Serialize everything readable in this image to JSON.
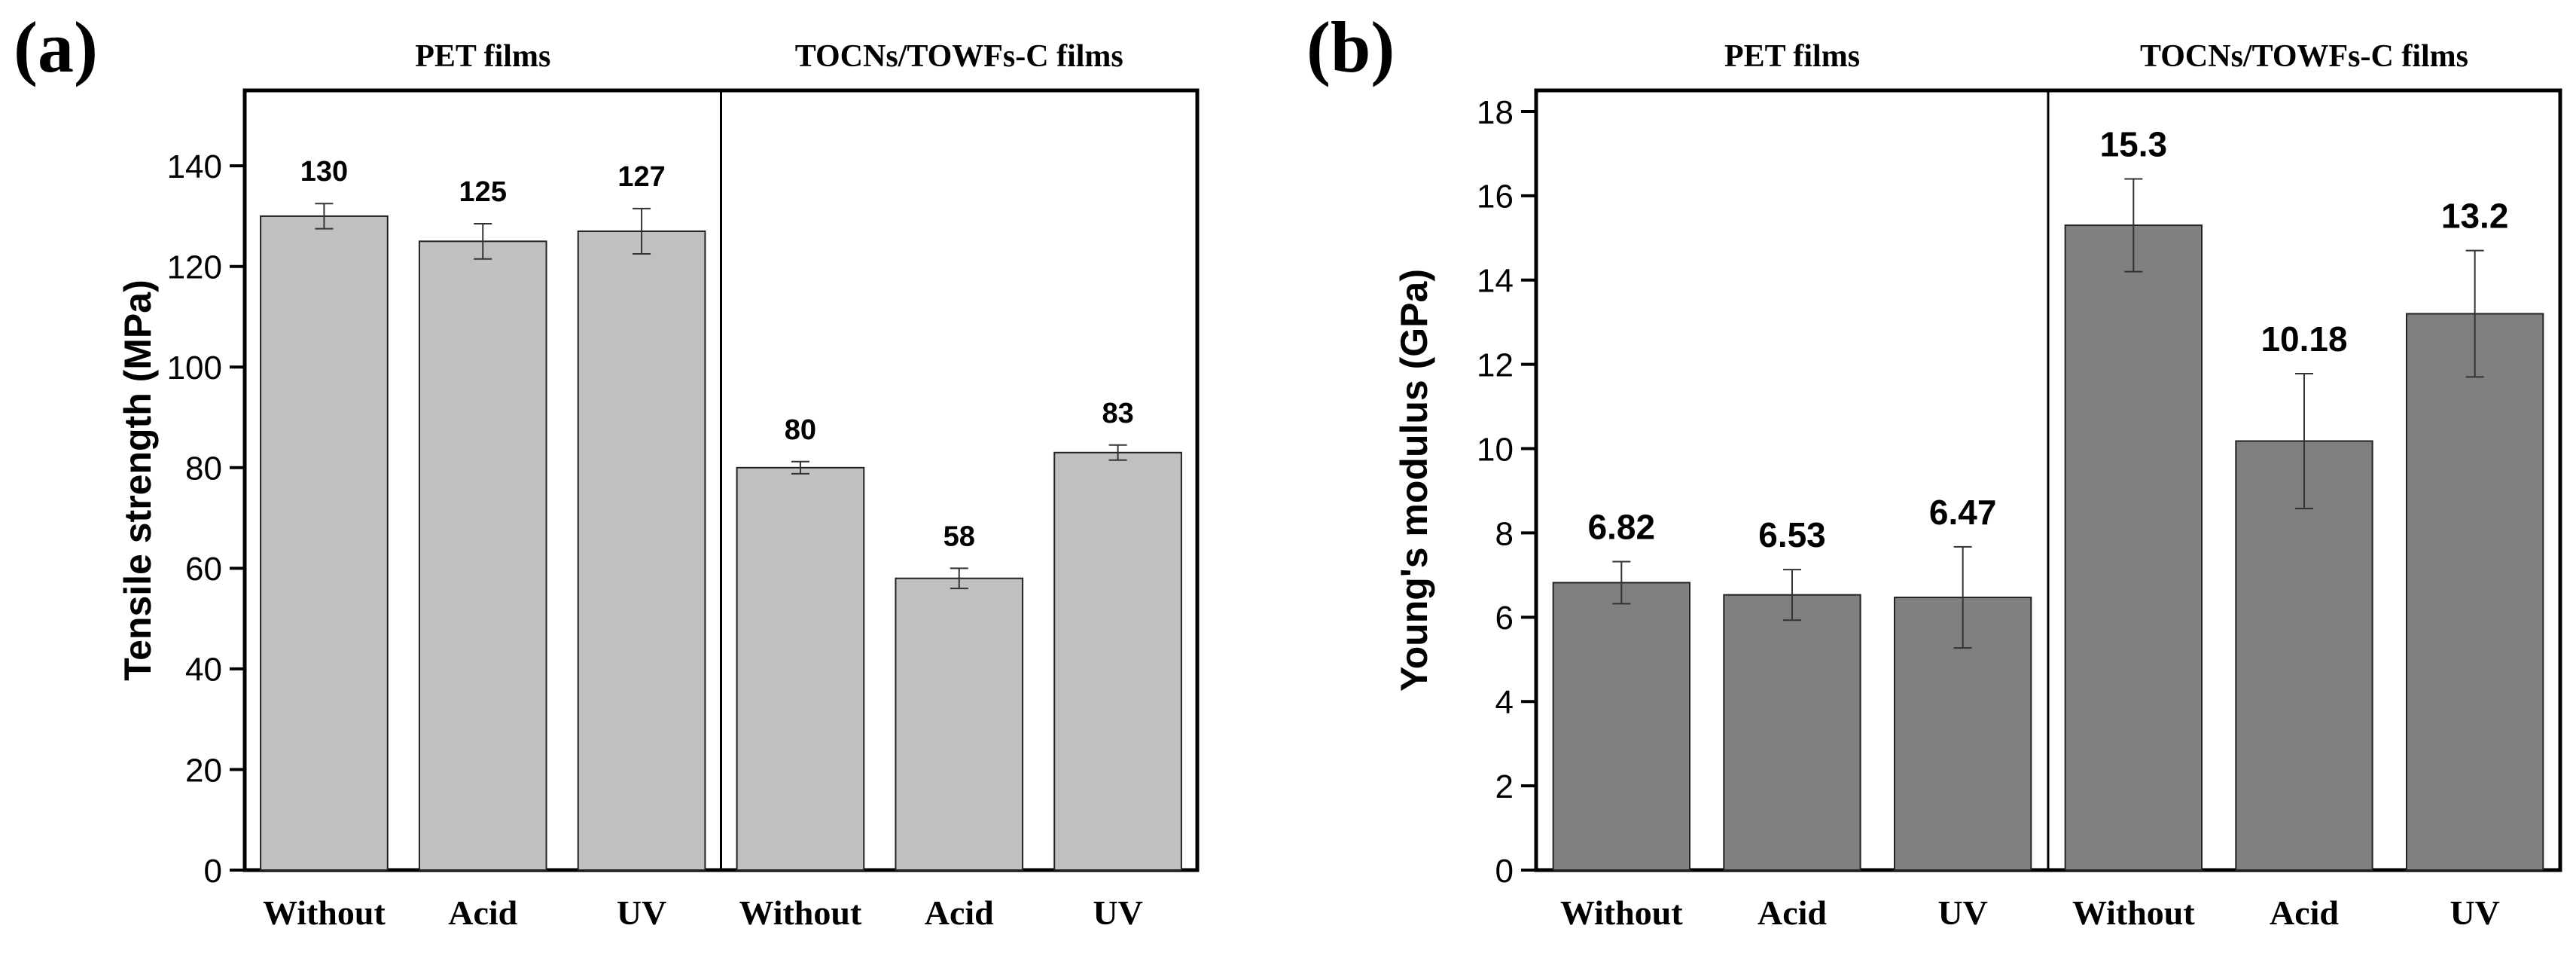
{
  "colors": {
    "axis": "#000000",
    "bar_a": "#c0c0c0",
    "bar_b": "#808080",
    "bar_edge": "#222222",
    "errorbar": "#333333",
    "background": "#ffffff"
  },
  "chart_data": [
    {
      "type": "bar",
      "panel_label": "(a)",
      "title": "",
      "xlabel": "",
      "ylabel": "Tensile strength (MPa)",
      "ylim": [
        0,
        155
      ],
      "yticks": [
        0,
        20,
        40,
        60,
        80,
        100,
        120,
        140
      ],
      "grid": false,
      "groups": [
        {
          "label": "PET films",
          "categories": [
            "Without",
            "Acid",
            "UV"
          ]
        },
        {
          "label": "TOCNs/TOWFs-C films",
          "categories": [
            "Without",
            "Acid",
            "UV"
          ]
        }
      ],
      "categories": [
        "Without",
        "Acid",
        "UV",
        "Without",
        "Acid",
        "UV"
      ],
      "values": [
        130,
        125,
        127,
        80,
        58,
        83
      ],
      "value_labels": [
        "130",
        "125",
        "127",
        "80",
        "58",
        "83"
      ],
      "errors": [
        2.5,
        3.5,
        4.5,
        1.2,
        2.0,
        1.5
      ]
    },
    {
      "type": "bar",
      "panel_label": "(b)",
      "title": "",
      "xlabel": "",
      "ylabel": "Young's modulus (GPa)",
      "ylim": [
        0,
        18.5
      ],
      "yticks": [
        0,
        2,
        4,
        6,
        8,
        10,
        12,
        14,
        16,
        18
      ],
      "grid": false,
      "groups": [
        {
          "label": "PET films",
          "categories": [
            "Without",
            "Acid",
            "UV"
          ]
        },
        {
          "label": "TOCNs/TOWFs-C films",
          "categories": [
            "Without",
            "Acid",
            "UV"
          ]
        }
      ],
      "categories": [
        "Without",
        "Acid",
        "UV",
        "Without",
        "Acid",
        "UV"
      ],
      "values": [
        6.82,
        6.53,
        6.47,
        15.3,
        10.18,
        13.2
      ],
      "value_labels": [
        "6.82",
        "6.53",
        "6.47",
        "15.3",
        "10.18",
        "13.2"
      ],
      "errors": [
        0.5,
        0.6,
        1.2,
        1.1,
        1.6,
        1.5
      ]
    }
  ]
}
